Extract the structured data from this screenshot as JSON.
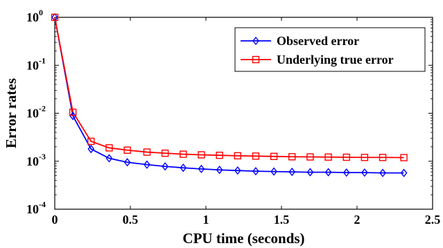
{
  "chart_data": {
    "type": "line",
    "title": "",
    "xlabel": "CPU time (seconds)",
    "ylabel": "Error rates",
    "xlim": [
      0,
      2.5
    ],
    "ylim": [
      0.0001,
      1
    ],
    "yscale": "log",
    "grid": false,
    "legend_position": "top-right",
    "x_ticks": [
      "0",
      "0.5",
      "1",
      "1.5",
      "2",
      "2.5"
    ],
    "y_ticks": [
      {
        "base": "10",
        "exp": "0"
      },
      {
        "base": "10",
        "exp": "-1"
      },
      {
        "base": "10",
        "exp": "-2"
      },
      {
        "base": "10",
        "exp": "-3"
      },
      {
        "base": "10",
        "exp": "-4"
      }
    ],
    "x": [
      0,
      0.12,
      0.24,
      0.36,
      0.48,
      0.61,
      0.73,
      0.85,
      0.97,
      1.09,
      1.21,
      1.33,
      1.45,
      1.57,
      1.69,
      1.81,
      1.93,
      2.05,
      2.17,
      2.31
    ],
    "series": [
      {
        "name": "Observed error",
        "color": "#0000ff",
        "marker": "diamond",
        "values": [
          1.0,
          0.0088,
          0.0018,
          0.00115,
          0.00095,
          0.00085,
          0.00078,
          0.00073,
          0.00069,
          0.00066,
          0.00064,
          0.00062,
          0.00061,
          0.0006,
          0.00059,
          0.00059,
          0.00058,
          0.00058,
          0.00057,
          0.00057
        ]
      },
      {
        "name": "Underlying true error",
        "color": "#ff0000",
        "marker": "square",
        "values": [
          1.0,
          0.0105,
          0.0026,
          0.0019,
          0.0017,
          0.00155,
          0.00147,
          0.0014,
          0.00136,
          0.00133,
          0.0013,
          0.00128,
          0.00126,
          0.00124,
          0.00123,
          0.00122,
          0.00121,
          0.0012,
          0.0012,
          0.00119
        ]
      }
    ]
  }
}
